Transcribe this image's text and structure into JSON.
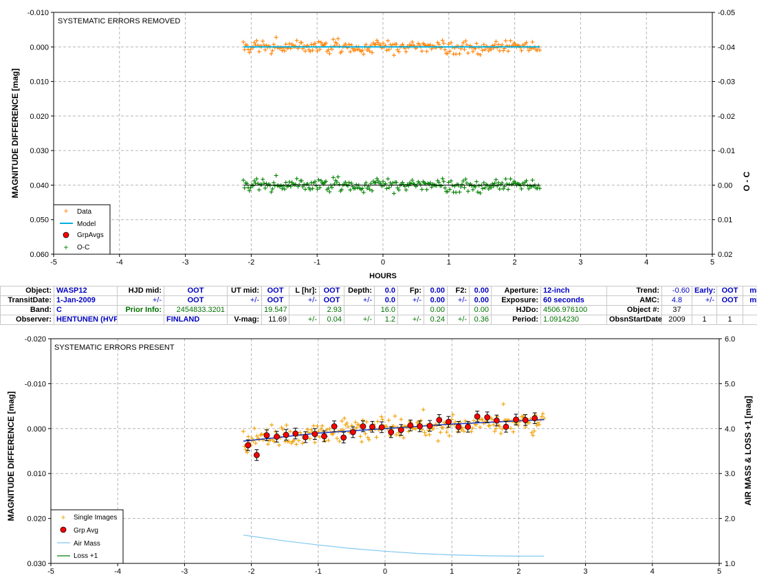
{
  "colors": {
    "data": "#ff8000",
    "model": "#00b0e0",
    "grpavg": "#ff0000",
    "oc": "#008000",
    "airmass": "#80c8f0",
    "loss": "#008000",
    "single": "#f0a000",
    "fit": "#2040c0"
  },
  "table": {
    "rows": [
      [
        {
          "t": "Object:",
          "c": "lbl"
        },
        {
          "t": "WASP12",
          "c": "val"
        },
        {
          "t": "HJD mid:",
          "c": "lbl"
        },
        {
          "t": "OOT",
          "c": "val ctr"
        },
        {
          "t": "UT mid:",
          "c": "lbl"
        },
        {
          "t": "OOT",
          "c": "val ctr"
        },
        {
          "t": "L [hr]:",
          "c": "lbl"
        },
        {
          "t": "OOT",
          "c": "val ctr"
        },
        {
          "t": "Depth:",
          "c": "lbl"
        },
        {
          "t": "0.0",
          "c": "val num"
        },
        {
          "t": "Fp:",
          "c": "lbl"
        },
        {
          "t": "0.00",
          "c": "val num"
        },
        {
          "t": "F2:",
          "c": "lbl"
        },
        {
          "t": "0.00",
          "c": "val num"
        },
        {
          "t": "Aperture:",
          "c": "lbl"
        },
        {
          "t": "12-inch",
          "c": "val"
        },
        {
          "t": "Trend:",
          "c": "lbl"
        },
        {
          "t": "-0.60",
          "c": "num blu"
        },
        {
          "t": "Early:",
          "c": "val ctr"
        },
        {
          "t": "OOT",
          "c": "val ctr"
        },
        {
          "t": "min",
          "c": "val ctr"
        }
      ],
      [
        {
          "t": "TransitDate:",
          "c": "lbl"
        },
        {
          "t": "1-Jan-2009",
          "c": "val"
        },
        {
          "t": "+/-",
          "c": "pm blu"
        },
        {
          "t": "OOT",
          "c": "val ctr"
        },
        {
          "t": "+/-",
          "c": "pm blu"
        },
        {
          "t": "OOT",
          "c": "val ctr"
        },
        {
          "t": "+/-",
          "c": "pm blu"
        },
        {
          "t": "OOT",
          "c": "val ctr"
        },
        {
          "t": "+/-",
          "c": "pm blu"
        },
        {
          "t": "0.0",
          "c": "val num"
        },
        {
          "t": "+/-",
          "c": "pm blu"
        },
        {
          "t": "0.00",
          "c": "val num"
        },
        {
          "t": "+/-",
          "c": "pm blu"
        },
        {
          "t": "0.00",
          "c": "val num"
        },
        {
          "t": "Exposure:",
          "c": "lbl"
        },
        {
          "t": "60 seconds",
          "c": "val"
        },
        {
          "t": "AMC:",
          "c": "lbl"
        },
        {
          "t": "4.8",
          "c": "num blu ctr"
        },
        {
          "t": "+/-",
          "c": "pm blu"
        },
        {
          "t": "OOT",
          "c": "val ctr"
        },
        {
          "t": "min",
          "c": "val ctr"
        }
      ],
      [
        {
          "t": "Band:",
          "c": "lbl"
        },
        {
          "t": "C",
          "c": "val"
        },
        {
          "t": "Prior Info:",
          "c": "lbl grn"
        },
        {
          "t": "2454833.3201",
          "c": "num grn"
        },
        {
          "t": "",
          "c": ""
        },
        {
          "t": "19.547",
          "c": "num grn"
        },
        {
          "t": "",
          "c": ""
        },
        {
          "t": "2.93",
          "c": "num grn"
        },
        {
          "t": "",
          "c": ""
        },
        {
          "t": "16.0",
          "c": "num grn"
        },
        {
          "t": "",
          "c": ""
        },
        {
          "t": "0.00",
          "c": "num grn"
        },
        {
          "t": "",
          "c": ""
        },
        {
          "t": "0.00",
          "c": "num grn"
        },
        {
          "t": "HJDo:",
          "c": "lbl"
        },
        {
          "t": "4506.976100",
          "c": "grn"
        },
        {
          "t": "Object #:",
          "c": "lbl"
        },
        {
          "t": "37",
          "c": "ctr"
        },
        {
          "t": "",
          "c": ""
        },
        {
          "t": "",
          "c": ""
        },
        {
          "t": "",
          "c": ""
        }
      ],
      [
        {
          "t": "Observer:",
          "c": "lbl"
        },
        {
          "t": "HENTUNEN (HVP)",
          "c": "val"
        },
        {
          "t": "",
          "c": ""
        },
        {
          "t": "FINLAND",
          "c": "val"
        },
        {
          "t": "V-mag:",
          "c": "lbl"
        },
        {
          "t": "11.69",
          "c": "num"
        },
        {
          "t": "+/-",
          "c": "pm grn"
        },
        {
          "t": "0.04",
          "c": "num grn"
        },
        {
          "t": "+/-",
          "c": "pm grn"
        },
        {
          "t": "1.2",
          "c": "num grn"
        },
        {
          "t": "+/-",
          "c": "pm grn"
        },
        {
          "t": "0.24",
          "c": "num grn"
        },
        {
          "t": "+/-",
          "c": "pm grn"
        },
        {
          "t": "0.36",
          "c": "num grn"
        },
        {
          "t": "Period:",
          "c": "lbl"
        },
        {
          "t": "1.0914230",
          "c": "grn"
        },
        {
          "t": "ObsnStartDate:",
          "c": "lbl"
        },
        {
          "t": "2009",
          "c": "ctr"
        },
        {
          "t": "1",
          "c": "ctr"
        },
        {
          "t": "1",
          "c": "ctr"
        },
        {
          "t": "",
          "c": ""
        }
      ]
    ]
  },
  "chart_data": [
    {
      "type": "scatter",
      "title": "SYSTEMATIC ERRORS REMOVED",
      "xlabel": "HOURS",
      "ylabel": "MAGNITUDE DIFFERENCE [mag]",
      "y2label": "O - C",
      "xlim": [
        -5,
        5
      ],
      "ylim": [
        -0.01,
        0.06
      ],
      "y_inverted": true,
      "y2lim": [
        -0.05,
        0.02
      ],
      "xticks": [
        "-5",
        "-4",
        "-3",
        "-2",
        "-1",
        "0",
        "1",
        "2",
        "3",
        "4",
        "5"
      ],
      "yticks": [
        "-0.010",
        "0.000",
        "0.010",
        "0.020",
        "0.030",
        "0.040",
        "0.050",
        "0.060"
      ],
      "y2ticks": [
        "-0.05",
        "-0.04",
        "-0.03",
        "-0.02",
        "-0.01",
        "0.00",
        "0.01",
        "0.02"
      ],
      "grid": true,
      "legend": "bottom-left",
      "legend_entries": [
        "Data",
        "Model",
        "GrpAvgs",
        "O-C"
      ],
      "data_offset": 0.0,
      "oc_offset": 0.04,
      "x_range": [
        -2.12,
        2.38
      ],
      "n_points": 245,
      "scatter_std": 0.0022,
      "model": [
        [
          -2.12,
          0.0
        ],
        [
          2.38,
          0.0
        ]
      ],
      "oc_baseline": [
        [
          -2.12,
          0.04
        ],
        [
          2.38,
          0.04
        ]
      ]
    },
    {
      "type": "scatter",
      "title": "SYSTEMATIC ERRORS PRESENT",
      "ylabel": "MAGNITUDE DIFFERENCE [mag]",
      "y2label": "AIR MASS & LOSS +1 [mag]",
      "xlim": [
        -5,
        5
      ],
      "ylim": [
        -0.02,
        0.03
      ],
      "y_inverted": true,
      "y2lim": [
        1.0,
        6.0
      ],
      "xticks": [
        "-5",
        "-4",
        "-3",
        "-2",
        "-1",
        "0",
        "1",
        "2",
        "3",
        "4",
        "5"
      ],
      "yticks": [
        "-0.020",
        "-0.010",
        "0.000",
        "0.010",
        "0.020",
        "0.030"
      ],
      "y2ticks": [
        "1.0",
        "2.0",
        "3.0",
        "4.0",
        "5.0",
        "6.0"
      ],
      "grid": true,
      "legend": "bottom-left",
      "legend_entries": [
        "Single Images",
        "Grp Avg",
        "Air Mass",
        "Loss +1"
      ],
      "grp_avg": {
        "x": [
          -2.05,
          -1.92,
          -1.77,
          -1.62,
          -1.48,
          -1.34,
          -1.19,
          -1.05,
          -0.91,
          -0.76,
          -0.62,
          -0.48,
          -0.33,
          -0.19,
          -0.05,
          0.09,
          0.24,
          0.38,
          0.52,
          0.67,
          0.81,
          0.95,
          1.1,
          1.24,
          1.38,
          1.53,
          1.67,
          1.81,
          1.96,
          2.1,
          2.24
        ],
        "y": [
          0.0037,
          0.0059,
          0.0015,
          0.0018,
          0.0014,
          0.0011,
          0.0019,
          0.0012,
          0.0017,
          -0.0005,
          0.002,
          0.0008,
          -0.0005,
          -0.0004,
          -0.0003,
          0.0008,
          0.0003,
          -0.0007,
          -0.0005,
          -0.0006,
          -0.0019,
          -0.0015,
          -0.0004,
          -0.0004,
          -0.0027,
          -0.0025,
          -0.0018,
          -0.0004,
          -0.002,
          -0.0019,
          -0.0023
        ],
        "err": 0.0012
      },
      "fit": [
        [
          -2.12,
          0.0028
        ],
        [
          -1.0,
          0.001
        ],
        [
          0.0,
          0.0
        ],
        [
          1.0,
          -0.001
        ],
        [
          2.38,
          -0.002
        ]
      ],
      "airmass": [
        [
          -2.12,
          1.63
        ],
        [
          -1.5,
          1.5
        ],
        [
          -1.0,
          1.41
        ],
        [
          -0.5,
          1.33
        ],
        [
          0.0,
          1.27
        ],
        [
          0.5,
          1.22
        ],
        [
          1.0,
          1.19
        ],
        [
          1.5,
          1.17
        ],
        [
          2.0,
          1.16
        ],
        [
          2.38,
          1.16
        ]
      ],
      "single_x_range": [
        -2.12,
        2.38
      ],
      "single_n": 245,
      "single_std": 0.0023
    }
  ]
}
